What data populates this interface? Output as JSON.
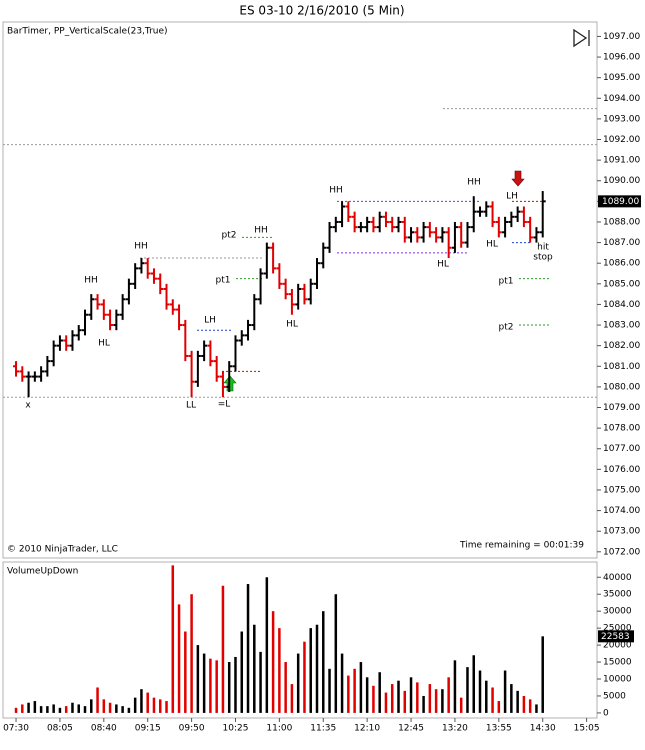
{
  "chart_data": [
    {
      "type": "ohlc",
      "title": "ES 03-10  2/16/2010 (5 Min)",
      "subtitle": "BarTimer, PP_VerticalScale(23,True)",
      "footer_left": "© 2010 NinjaTrader, LLC",
      "footer_right": "Time remaining = 00:01:39",
      "up_color": "#000000",
      "down_color": "#e00000",
      "grid": false,
      "ylim": [
        1071.7,
        1097.7
      ],
      "yticks": [
        {
          "value": 1072,
          "label": "1072.00"
        },
        {
          "value": 1073,
          "label": "1073.00"
        },
        {
          "value": 1074,
          "label": "1074.00"
        },
        {
          "value": 1075,
          "label": "1075.00"
        },
        {
          "value": 1076,
          "label": "1076.00"
        },
        {
          "value": 1077,
          "label": "1077.00"
        },
        {
          "value": 1078,
          "label": "1078.00"
        },
        {
          "value": 1079,
          "label": "1079.00"
        },
        {
          "value": 1080,
          "label": "1080.00"
        },
        {
          "value": 1081,
          "label": "1081.00"
        },
        {
          "value": 1082,
          "label": "1082.00"
        },
        {
          "value": 1083,
          "label": "1083.00"
        },
        {
          "value": 1084,
          "label": "1084.00"
        },
        {
          "value": 1085,
          "label": "1085.00"
        },
        {
          "value": 1086,
          "label": "1086.00"
        },
        {
          "value": 1087,
          "label": "1087.00"
        },
        {
          "value": 1088,
          "label": "1088.00"
        },
        {
          "value": 1089,
          "label": "1089.00"
        },
        {
          "value": 1090,
          "label": "1090.00"
        },
        {
          "value": 1091,
          "label": "1091.00"
        },
        {
          "value": 1092,
          "label": "1092.00"
        },
        {
          "value": 1093,
          "label": "1093.00"
        },
        {
          "value": 1094,
          "label": "1094.00"
        },
        {
          "value": 1095,
          "label": "1095.00"
        },
        {
          "value": 1096,
          "label": "1096.00"
        },
        {
          "value": 1097,
          "label": "1097.00"
        }
      ],
      "open": [
        1081.0,
        1080.75,
        1080.5,
        1080.5,
        1080.5,
        1080.75,
        1081.25,
        1082.0,
        1082.25,
        1082.0,
        1082.5,
        1082.75,
        1083.5,
        1084.25,
        1084.0,
        1083.5,
        1083.0,
        1083.5,
        1084.25,
        1085.0,
        1085.75,
        1086.0,
        1085.5,
        1085.25,
        1084.75,
        1084.0,
        1083.75,
        1083.0,
        1081.5,
        1080.25,
        1081.5,
        1082.0,
        1081.25,
        1080.5,
        1080.0,
        1081.0,
        1082.25,
        1082.5,
        1083.0,
        1084.25,
        1085.5,
        1086.75,
        1085.75,
        1085.0,
        1084.5,
        1084.0,
        1084.75,
        1084.25,
        1085.0,
        1086.0,
        1086.75,
        1087.75,
        1088.0,
        1088.75,
        1088.25,
        1087.75,
        1087.75,
        1088.0,
        1087.75,
        1088.25,
        1088.0,
        1087.75,
        1088.0,
        1087.25,
        1087.5,
        1087.25,
        1087.75,
        1087.5,
        1087.25,
        1087.5,
        1086.75,
        1087.75,
        1087.0,
        1087.75,
        1088.5,
        1088.5,
        1088.75,
        1088.0,
        1087.5,
        1088.0,
        1088.25,
        1088.5,
        1088.0,
        1087.25,
        1087.5,
        null,
        null,
        null,
        null,
        null,
        null,
        null
      ],
      "high": [
        1081.25,
        1081.0,
        1080.75,
        1080.75,
        1081.0,
        1081.5,
        1082.25,
        1082.5,
        1082.5,
        1082.75,
        1083.0,
        1083.75,
        1084.5,
        1084.5,
        1084.25,
        1083.75,
        1083.75,
        1084.5,
        1085.25,
        1086.0,
        1086.25,
        1086.25,
        1085.75,
        1085.5,
        1085.0,
        1084.25,
        1084.0,
        1083.25,
        1081.75,
        1081.75,
        1082.25,
        1082.25,
        1081.5,
        1080.75,
        1081.25,
        1082.5,
        1082.75,
        1083.25,
        1084.5,
        1085.75,
        1087.0,
        1087.0,
        1086.0,
        1085.25,
        1084.75,
        1085.0,
        1085.0,
        1085.25,
        1086.25,
        1087.0,
        1088.0,
        1088.25,
        1089.0,
        1089.0,
        1088.5,
        1088.0,
        1088.25,
        1088.25,
        1088.5,
        1088.5,
        1088.25,
        1088.25,
        1088.25,
        1087.75,
        1087.75,
        1088.0,
        1088.0,
        1087.75,
        1087.75,
        1087.75,
        1088.0,
        1088.0,
        1088.0,
        1089.25,
        1088.75,
        1089.0,
        1089.0,
        1088.25,
        1088.25,
        1088.5,
        1088.75,
        1088.75,
        1088.25,
        1087.75,
        1089.5,
        null,
        null,
        null,
        null,
        null,
        null,
        null
      ],
      "low": [
        1080.5,
        1080.25,
        1079.5,
        1080.25,
        1080.25,
        1080.5,
        1081.0,
        1081.75,
        1081.75,
        1081.75,
        1082.25,
        1082.5,
        1083.25,
        1083.75,
        1083.25,
        1082.75,
        1082.75,
        1083.25,
        1084.0,
        1084.75,
        1085.5,
        1085.25,
        1085.0,
        1084.5,
        1083.75,
        1083.5,
        1082.75,
        1081.25,
        1079.5,
        1080.0,
        1081.25,
        1081.0,
        1080.25,
        1079.5,
        1079.75,
        1080.75,
        1082.0,
        1082.25,
        1082.75,
        1084.0,
        1085.25,
        1085.5,
        1084.75,
        1084.25,
        1083.5,
        1083.75,
        1084.0,
        1084.0,
        1084.75,
        1085.75,
        1086.5,
        1087.5,
        1087.75,
        1088.0,
        1087.5,
        1087.5,
        1087.5,
        1087.5,
        1087.5,
        1087.75,
        1087.5,
        1087.5,
        1087.0,
        1087.0,
        1087.0,
        1087.0,
        1087.25,
        1087.0,
        1087.0,
        1086.25,
        1086.5,
        1086.75,
        1086.75,
        1087.5,
        1088.25,
        1088.25,
        1087.75,
        1087.25,
        1087.25,
        1087.75,
        1088.0,
        1087.75,
        1087.0,
        1087.0,
        1087.25,
        null,
        null,
        null,
        null,
        null,
        null,
        null
      ],
      "close": [
        1080.75,
        1080.5,
        1080.5,
        1080.5,
        1080.75,
        1081.25,
        1082.0,
        1082.25,
        1082.0,
        1082.5,
        1082.75,
        1083.5,
        1084.25,
        1084.0,
        1083.5,
        1083.0,
        1083.5,
        1084.25,
        1085.0,
        1085.75,
        1086.0,
        1085.5,
        1085.25,
        1084.75,
        1084.0,
        1083.75,
        1083.0,
        1081.5,
        1080.25,
        1081.5,
        1082.0,
        1081.25,
        1080.5,
        1080.0,
        1081.0,
        1082.25,
        1082.5,
        1083.0,
        1084.25,
        1085.5,
        1086.75,
        1085.75,
        1085.0,
        1084.5,
        1084.0,
        1084.75,
        1084.25,
        1085.0,
        1086.0,
        1086.75,
        1087.75,
        1088.0,
        1088.75,
        1088.25,
        1087.75,
        1087.75,
        1088.0,
        1087.75,
        1088.25,
        1088.0,
        1087.75,
        1088.0,
        1087.25,
        1087.5,
        1087.25,
        1087.75,
        1087.5,
        1087.25,
        1087.5,
        1086.75,
        1087.75,
        1087.0,
        1087.75,
        1088.5,
        1088.5,
        1088.75,
        1088.0,
        1087.5,
        1088.0,
        1088.25,
        1088.5,
        1088.0,
        1087.25,
        1087.5,
        1089.0,
        null,
        null,
        null,
        null,
        null,
        null,
        null
      ],
      "last_price_label": "1089.00",
      "levels": [
        {
          "value": 1079.5,
          "color": "#9a9a9a"
        },
        {
          "value": 1091.75,
          "color": "#9a9a9a"
        },
        {
          "value": 1093.5,
          "color": "#9a9a9a"
        },
        {
          "value": 1086.25,
          "color": "#9a9a9a"
        },
        {
          "value": 1089.0,
          "color": "#8a2be2"
        },
        {
          "value": 1086.5,
          "color": "#8a2be2"
        },
        {
          "value": 1082.75,
          "color": "#1f3fe0"
        },
        {
          "value": 1080.75,
          "color": "#e00000"
        },
        {
          "value": 1087.25,
          "color": "#2a9a2a"
        },
        {
          "value": 1085.25,
          "color": "#2a9a2a"
        },
        {
          "value": 1085.25,
          "color": "#2a9a2a"
        },
        {
          "value": 1083.0,
          "color": "#2a9a2a"
        },
        {
          "value": 1089.0,
          "color": "#e00000"
        },
        {
          "value": 1087.0,
          "color": "#1f3fe0"
        }
      ],
      "annotations": [
        "x",
        "HH",
        "HL",
        "HH",
        "LL",
        "LH",
        "=L",
        "pt2",
        "HH",
        "pt1",
        "HL",
        "HH",
        "HL",
        "HH",
        "HL",
        "LH",
        "hit",
        "stop",
        "pt1",
        "pt2"
      ]
    },
    {
      "type": "bar",
      "title": "VolumeUpDown",
      "ylim": [
        -1500,
        44500
      ],
      "yticks": [
        0,
        5000,
        10000,
        15000,
        20000,
        25000,
        30000,
        35000,
        40000
      ],
      "grid": false,
      "categories": [
        "07:30",
        null,
        null,
        null,
        null,
        null,
        null,
        "08:05",
        null,
        null,
        null,
        null,
        null,
        null,
        "08:40",
        null,
        null,
        null,
        null,
        null,
        null,
        "09:15",
        null,
        null,
        null,
        null,
        null,
        null,
        "09:50",
        null,
        null,
        null,
        null,
        null,
        null,
        "10:25",
        null,
        null,
        null,
        null,
        null,
        null,
        "11:00",
        null,
        null,
        null,
        null,
        null,
        null,
        "11:35",
        null,
        null,
        null,
        null,
        null,
        null,
        "12:10",
        null,
        null,
        null,
        null,
        null,
        null,
        "12:45",
        null,
        null,
        null,
        null,
        null,
        null,
        "13:20",
        null,
        null,
        null,
        null,
        null,
        null,
        "13:55",
        null,
        null,
        null,
        null,
        null,
        null,
        "14:30",
        null,
        null,
        null,
        null,
        null,
        null,
        "15:05"
      ],
      "values": [
        1500,
        2500,
        3000,
        3500,
        2000,
        2000,
        2500,
        1500,
        2000,
        3000,
        2500,
        2000,
        4000,
        7500,
        4000,
        3000,
        2500,
        2000,
        1500,
        4500,
        7000,
        6000,
        4500,
        4000,
        3500,
        43500,
        32000,
        24000,
        35000,
        20000,
        17500,
        16000,
        15500,
        37500,
        15000,
        16500,
        24000,
        38000,
        26000,
        18000,
        40000,
        30000,
        25000,
        15000,
        8500,
        17500,
        21000,
        25000,
        26000,
        30000,
        13000,
        35000,
        17500,
        11000,
        13000,
        15000,
        10500,
        8000,
        12000,
        6000,
        8500,
        9500,
        6500,
        10500,
        9000,
        5000,
        8500,
        7000,
        7000,
        10500,
        15500,
        4500,
        13500,
        17000,
        12500,
        9500,
        7500,
        3500,
        12500,
        8500,
        6500,
        5000,
        4000,
        2500,
        22583,
        null,
        null,
        null,
        null,
        null,
        null,
        null
      ]
    }
  ]
}
